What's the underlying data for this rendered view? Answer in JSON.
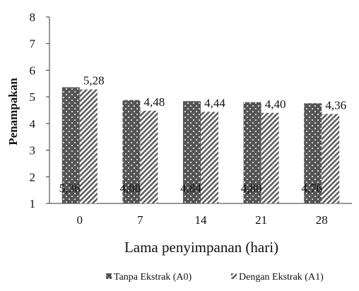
{
  "chart_data": {
    "type": "bar",
    "title": "",
    "xlabel": "Lama penyimpanan (hari)",
    "ylabel": "Penampakan",
    "categories": [
      "0",
      "7",
      "14",
      "21",
      "28"
    ],
    "ylim": [
      1,
      8
    ],
    "yticks": [
      "1",
      "2",
      "3",
      "4",
      "5",
      "6",
      "7",
      "8"
    ],
    "grid": false,
    "legend_position": "bottom",
    "series": [
      {
        "name": "Tanpa Ekstrak (A0)",
        "values": [
          5.36,
          4.88,
          4.84,
          4.8,
          4.76
        ],
        "value_labels": [
          "5,36",
          "4,88",
          "4,84",
          "4,80",
          "4,76"
        ],
        "pattern": "dotted-dark",
        "color": "#4d4d4d"
      },
      {
        "name": "Dengan Ekstrak (A1)",
        "values": [
          5.28,
          4.48,
          4.44,
          4.4,
          4.36
        ],
        "value_labels": [
          "5,28",
          "4,48",
          "4,44",
          "4,40",
          "4,36"
        ],
        "pattern": "diagonal-stripes",
        "color": "#6b6b6b"
      }
    ]
  }
}
